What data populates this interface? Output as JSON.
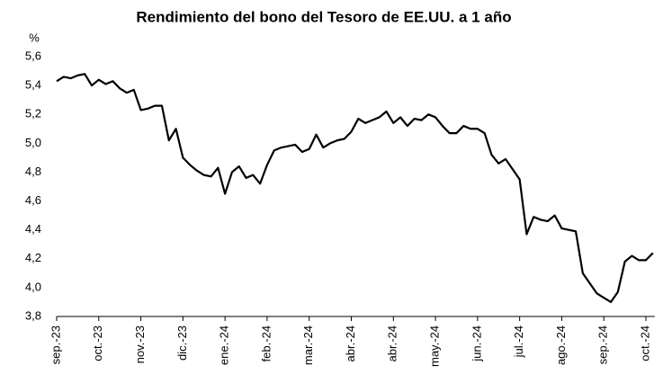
{
  "chart_data": {
    "type": "line",
    "title": "Rendimiento del bono del Tesoro de EE.UU. a 1 año",
    "y_unit": "%",
    "color": "#000000",
    "categories": [
      "sep.-23",
      null,
      null,
      null,
      null,
      null,
      "oct.-23",
      null,
      null,
      null,
      null,
      null,
      "nov.-23",
      null,
      null,
      null,
      null,
      null,
      "dic.-23",
      null,
      null,
      null,
      null,
      null,
      "ene.-24",
      null,
      null,
      null,
      null,
      null,
      "feb.-24",
      null,
      null,
      null,
      null,
      null,
      "mar.-24",
      null,
      null,
      null,
      null,
      null,
      "abr.-24",
      null,
      null,
      null,
      null,
      null,
      "abr.-24",
      null,
      null,
      null,
      null,
      null,
      "may.-24",
      null,
      null,
      null,
      null,
      null,
      "jun.-24",
      null,
      null,
      null,
      null,
      null,
      "jul.-24",
      null,
      null,
      null,
      null,
      null,
      "ago.-24",
      null,
      null,
      null,
      null,
      null,
      "sep.-24",
      null,
      null,
      null,
      null,
      null,
      "oct.-24",
      null
    ],
    "values": [
      5.43,
      5.46,
      5.45,
      5.47,
      5.48,
      5.4,
      5.44,
      5.41,
      5.43,
      5.38,
      5.35,
      5.37,
      5.23,
      5.24,
      5.26,
      5.26,
      5.02,
      5.1,
      4.9,
      4.85,
      4.81,
      4.78,
      4.77,
      4.83,
      4.65,
      4.8,
      4.84,
      4.76,
      4.78,
      4.72,
      4.85,
      4.95,
      4.97,
      4.98,
      4.99,
      4.94,
      4.96,
      5.06,
      4.97,
      5.0,
      5.02,
      5.03,
      5.08,
      5.17,
      5.14,
      5.16,
      5.18,
      5.22,
      5.14,
      5.18,
      5.12,
      5.17,
      5.16,
      5.2,
      5.18,
      5.12,
      5.07,
      5.07,
      5.12,
      5.1,
      5.1,
      5.07,
      4.92,
      4.86,
      4.89,
      4.82,
      4.75,
      4.37,
      4.49,
      4.47,
      4.46,
      4.5,
      4.41,
      4.4,
      4.39,
      4.1,
      4.03,
      3.96,
      3.93,
      3.9,
      3.97,
      4.18,
      4.22,
      4.19,
      4.19,
      4.24
    ],
    "ylim": [
      3.8,
      5.6
    ],
    "yticks": [
      {
        "value": 3.8,
        "label": "3,8"
      },
      {
        "value": 4.0,
        "label": "4,0"
      },
      {
        "value": 4.2,
        "label": "4,2"
      },
      {
        "value": 4.4,
        "label": "4,4"
      },
      {
        "value": 4.6,
        "label": "4,6"
      },
      {
        "value": 4.8,
        "label": "4,8"
      },
      {
        "value": 5.0,
        "label": "5,0"
      },
      {
        "value": 5.2,
        "label": "5,2"
      },
      {
        "value": 5.4,
        "label": "5,4"
      },
      {
        "value": 5.6,
        "label": "5,6"
      }
    ],
    "grid": false
  }
}
